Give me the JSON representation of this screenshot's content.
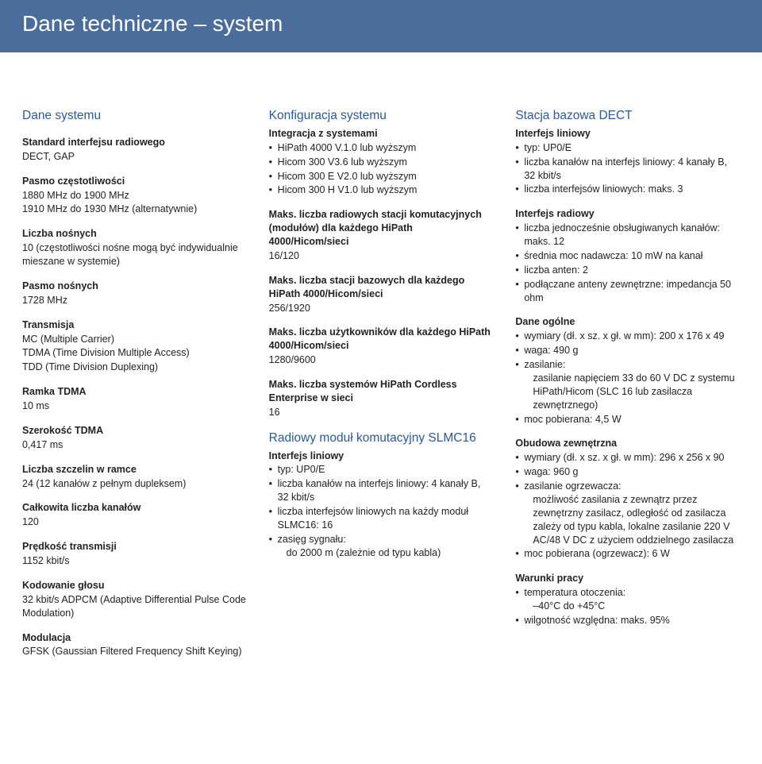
{
  "title": "Dane techniczne – system",
  "title_bg": "#4a6d9c",
  "title_color": "#ffffff",
  "accent_color": "#2c5a93",
  "col1": {
    "h": "Dane systemu",
    "b1_l": "Standard interfejsu radiowego",
    "b1_v": "DECT, GAP",
    "b2_l": "Pasmo częstotliwości",
    "b2_v1": "1880 MHz do 1900 MHz",
    "b2_v2": "1910 MHz do 1930 MHz (alternatywnie)",
    "b3_l": "Liczba nośnych",
    "b3_v": "10 (częstotliwości nośne mogą być indywidualnie mieszane w systemie)",
    "b4_l": "Pasmo nośnych",
    "b4_v": "1728 MHz",
    "b5_l": "Transmisja",
    "b5_v1": "MC (Multiple Carrier)",
    "b5_v2": "TDMA (Time Division Multiple Access)",
    "b5_v3": "TDD (Time Division Duplexing)",
    "b6_l": "Ramka TDMA",
    "b6_v": "10 ms",
    "b7_l": "Szerokość TDMA",
    "b7_v": "0,417 ms",
    "b8_l": "Liczba szczelin w ramce",
    "b8_v": "24 (12 kanałów z pełnym dupleksem)",
    "b9_l": "Całkowita liczba kanałów",
    "b9_v": "120",
    "b10_l": "Prędkość transmisji",
    "b10_v": "1152 kbit/s",
    "b11_l": "Kodowanie głosu",
    "b11_v": "32 kbit/s ADPCM (Adaptive Differential Pulse Code Modulation)",
    "b12_l": "Modulacja",
    "b12_v": "GFSK (Gaussian Filtered Frequency Shift Keying)"
  },
  "col2": {
    "h": "Konfiguracja systemu",
    "int_l": "Integracja z systemami",
    "int_i1": "HiPath 4000 V.1.0 lub wyższym",
    "int_i2": "Hicom 300 V3.6 lub wyższym",
    "int_i3": "Hicom 300 E V2.0 lub wyższym",
    "int_i4": "Hicom 300 H V1.0 lub wyższym",
    "mr_l": "Maks. liczba radiowych stacji komutacyjnych (modułów) dla każdego HiPath 4000/Hicom/sieci",
    "mr_v": "16/120",
    "mb_l": "Maks. liczba stacji bazowych dla każdego HiPath 4000/Hicom/sieci",
    "mb_v": "256/1920",
    "mu_l": "Maks. liczba użytkowników dla każdego HiPath 4000/Hicom/sieci",
    "mu_v": "1280/9600",
    "ms_l": "Maks. liczba systemów HiPath Cordless Enterprise w sieci",
    "ms_v": "16",
    "slmc_h": "Radiowy moduł komutacyjny SLMC16",
    "il_l": "Interfejs liniowy",
    "il_i1": "typ: UP0/E",
    "il_i2": "liczba kanałów na interfejs liniowy: 4 kanały B, 32 kbit/s",
    "il_i3": "liczba interfejsów liniowych na każdy moduł SLMC16: 16",
    "il_i4a": "zasięg sygnału:",
    "il_i4b": "do 2000 m (zależnie od typu kabla)"
  },
  "col3": {
    "h": "Stacja bazowa DECT",
    "il_l": "Interfejs liniowy",
    "il_i1": "typ: UP0/E",
    "il_i2": "liczba kanałów na interfejs liniowy: 4 kanały B, 32 kbit/s",
    "il_i3": "liczba interfejsów liniowych: maks. 3",
    "ir_l": "Interfejs radiowy",
    "ir_i1": "liczba jednocześnie obsługiwanych kanałów: maks. 12",
    "ir_i2": "średnia moc nadawcza: 10 mW na kanał",
    "ir_i3": "liczba anten: 2",
    "ir_i4": "podłączane anteny zewnętrzne: impedancja 50 ohm",
    "dg_l": "Dane ogólne",
    "dg_i1": "wymiary (dł. x sz. x gł. w mm): 200 x 176 x 49",
    "dg_i2": "waga: 490 g",
    "dg_i3a": "zasilanie:",
    "dg_i3b": "zasilanie napięciem 33 do 60 V DC z systemu HiPath/Hicom (SLC 16 lub zasilacza zewnętrznego)",
    "dg_i4": "moc pobierana: 4,5 W",
    "oz_l": "Obudowa zewnętrzna",
    "oz_i1": "wymiary (dł. x sz. x gł. w mm): 296 x 256 x 90",
    "oz_i2": "waga: 960 g",
    "oz_i3a": "zasilanie ogrzewacza:",
    "oz_i3b": "możliwość zasilania z zewnątrz przez zewnętrzny zasilacz, odległość od zasilacza zależy od typu kabla, lokalne zasilanie 220 V AC/48 V DC z użyciem oddzielnego zasilacza",
    "oz_i4": "moc pobierana (ogrzewacz): 6 W",
    "wp_l": "Warunki pracy",
    "wp_i1a": "temperatura otoczenia:",
    "wp_i1b": "–40°C do +45°C",
    "wp_i2": "wilgotność względna: maks. 95%"
  }
}
